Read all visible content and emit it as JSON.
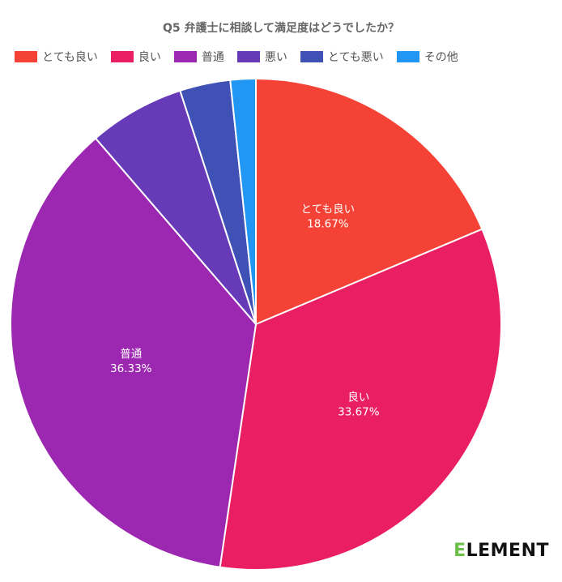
{
  "chart_data": {
    "type": "pie",
    "title": "Q5 弁護士に相談して満足度はどうでしたか？",
    "legend_position": "top",
    "slices": [
      {
        "label": "とても良い",
        "value": 18.67,
        "value_label": "18.67%",
        "color": "#f44336",
        "show_label": true
      },
      {
        "label": "良い",
        "value": 33.67,
        "value_label": "33.67%",
        "color": "#e91e63",
        "show_label": true
      },
      {
        "label": "普通",
        "value": 36.33,
        "value_label": "36.33%",
        "color": "#9c27b0",
        "show_label": true
      },
      {
        "label": "悪い",
        "value": 6.33,
        "value_label": "",
        "color": "#673ab7",
        "show_label": false
      },
      {
        "label": "とても悪い",
        "value": 3.33,
        "value_label": "",
        "color": "#3f51b5",
        "show_label": false
      },
      {
        "label": "その他",
        "value": 1.67,
        "value_label": "",
        "color": "#2196f3",
        "show_label": false
      }
    ]
  },
  "logo": {
    "first_letter": "E",
    "rest": "LEMENT"
  }
}
